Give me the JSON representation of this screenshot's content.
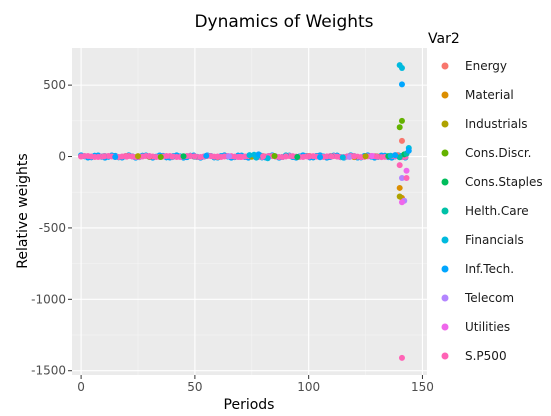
{
  "chart_data": {
    "type": "scatter",
    "title": "Dynamics of Weights",
    "xlabel": "Periods",
    "ylabel": "Relative weights",
    "xlim": [
      -4,
      152
    ],
    "ylim": [
      -1530,
      760
    ],
    "x_ticks": [
      0,
      50,
      100,
      150
    ],
    "y_ticks": [
      500,
      0,
      -500,
      -1000,
      -1500
    ],
    "x_tick_labels": [
      "0",
      "50",
      "100",
      "150"
    ],
    "y_tick_labels": [
      "500",
      "0",
      "-500",
      "-1000",
      "-1500"
    ],
    "grid": true,
    "background": "#ebebeb",
    "legend": {
      "title": "Var2",
      "placement": "right",
      "entries": [
        {
          "name": "Energy",
          "color": "#F8766D"
        },
        {
          "name": "Material",
          "color": "#DB8E00"
        },
        {
          "name": "Industrials",
          "color": "#AEA200"
        },
        {
          "name": "Cons.Discr.",
          "color": "#64B200"
        },
        {
          "name": "Cons.Staples",
          "color": "#00BD5C"
        },
        {
          "name": "Helth.Care",
          "color": "#00C1A7"
        },
        {
          "name": "Financials",
          "color": "#00BADE"
        },
        {
          "name": "Inf.Tech.",
          "color": "#00A6FF"
        },
        {
          "name": "Telecom",
          "color": "#B385FF"
        },
        {
          "name": "Utilities",
          "color": "#EF67EB"
        },
        {
          "name": "S.P500",
          "color": "#FF63B6"
        }
      ]
    },
    "series": [
      {
        "name": "Energy",
        "x": [
          20,
          60,
          100,
          139,
          141
        ],
        "y": [
          2,
          -3,
          4,
          10,
          110
        ]
      },
      {
        "name": "Material",
        "x": [
          30,
          80,
          120,
          140,
          141
        ],
        "y": [
          -2,
          3,
          -4,
          -220,
          -290
        ]
      },
      {
        "name": "Industrials",
        "x": [
          25,
          75,
          125,
          140
        ],
        "y": [
          3,
          -2,
          2,
          -280
        ]
      },
      {
        "name": "Cons.Discr.",
        "x": [
          35,
          85,
          130,
          140,
          141
        ],
        "y": [
          -3,
          4,
          1,
          205,
          250
        ]
      },
      {
        "name": "Cons.Staples",
        "x": [
          45,
          95,
          135,
          142
        ],
        "y": [
          2,
          -3,
          3,
          15
        ]
      },
      {
        "name": "Helth.Care",
        "x": [
          50,
          110,
          140,
          143
        ],
        "y": [
          -2,
          2,
          -5,
          20
        ]
      },
      {
        "name": "Financials",
        "x": [
          10,
          40,
          74,
          76,
          77,
          79,
          82,
          90,
          115,
          136,
          140,
          141,
          144
        ],
        "y": [
          3,
          -4,
          10,
          12,
          -8,
          6,
          -12,
          8,
          -6,
          5,
          640,
          620,
          60
        ]
      },
      {
        "name": "Inf.Tech.",
        "x": [
          15,
          55,
          78,
          105,
          138,
          141,
          144
        ],
        "y": [
          -3,
          5,
          15,
          -5,
          10,
          505,
          40
        ]
      },
      {
        "name": "Telecom",
        "x": [
          65,
          118,
          141,
          142
        ],
        "y": [
          2,
          -3,
          -150,
          -310
        ]
      },
      {
        "name": "Utilities",
        "x": [
          70,
          128,
          141,
          143
        ],
        "y": [
          -2,
          4,
          -320,
          -100
        ]
      },
      {
        "name": "S.P500",
        "x": [
          0,
          10,
          20,
          30,
          40,
          50,
          60,
          70,
          80,
          90,
          100,
          110,
          120,
          130,
          140,
          141,
          143
        ],
        "y": [
          0,
          1,
          -1,
          2,
          -2,
          1,
          0,
          -3,
          2,
          1,
          -1,
          0,
          2,
          -1,
          -60,
          -1410,
          -150
        ]
      }
    ]
  }
}
